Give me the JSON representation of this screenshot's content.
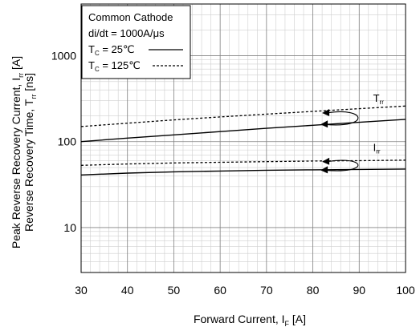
{
  "chart_data": {
    "type": "line",
    "xlabel": "Forward Current, I",
    "xlabel_sub": "F",
    "xlabel_unit": " [A]",
    "ylabel_line1": "Peak Reverse Recovery Current, I",
    "ylabel_line1_sub": "rr",
    "ylabel_line1_unit": " [A]",
    "ylabel_line2": "Reverse Recovery Time, T",
    "ylabel_line2_sub": "rr",
    "ylabel_line2_unit": " [ns]",
    "xlim": [
      30,
      100
    ],
    "ylim": [
      3,
      4000
    ],
    "yscale": "log",
    "grid": true,
    "x_ticks": [
      "30",
      "40",
      "50",
      "60",
      "70",
      "80",
      "90",
      "100"
    ],
    "y_ticks": [
      "10",
      "100",
      "1000"
    ],
    "legend": {
      "placement": "top-left",
      "title": "Common Cathode",
      "line2": "di/dt = 1000A/μs",
      "entries": [
        {
          "label_main": "T",
          "label_sub": "C",
          "label_rest": " =  25℃",
          "style": "solid"
        },
        {
          "label_main": "T",
          "label_sub": "C",
          "label_rest": " = 125℃",
          "style": "dashed"
        }
      ]
    },
    "series": [
      {
        "curve": "Trr",
        "condition": "25C",
        "style": "solid",
        "x": [
          30,
          40,
          50,
          60,
          70,
          80,
          90,
          100
        ],
        "y": [
          100,
          110,
          120,
          131,
          143,
          155,
          168,
          182
        ]
      },
      {
        "curve": "Trr",
        "condition": "125C",
        "style": "dashed",
        "x": [
          30,
          40,
          50,
          60,
          70,
          80,
          90,
          100
        ],
        "y": [
          150,
          164,
          179,
          194,
          209,
          225,
          242,
          260
        ]
      },
      {
        "curve": "Irr",
        "condition": "25C",
        "style": "solid",
        "x": [
          30,
          40,
          50,
          60,
          70,
          80,
          90,
          100
        ],
        "y": [
          41,
          43,
          44.5,
          45.5,
          46.5,
          47,
          47.5,
          48
        ]
      },
      {
        "curve": "Irr",
        "condition": "125C",
        "style": "dashed",
        "x": [
          30,
          40,
          50,
          60,
          70,
          80,
          90,
          100
        ],
        "y": [
          53,
          55,
          56.5,
          57.5,
          58.5,
          59.5,
          60,
          61
        ]
      }
    ],
    "annotations": [
      {
        "text_main": "T",
        "text_sub": "rr",
        "x": 93,
        "y": 290
      },
      {
        "text_main": "I",
        "text_sub": "rr",
        "x": 93,
        "y": 78
      }
    ]
  }
}
